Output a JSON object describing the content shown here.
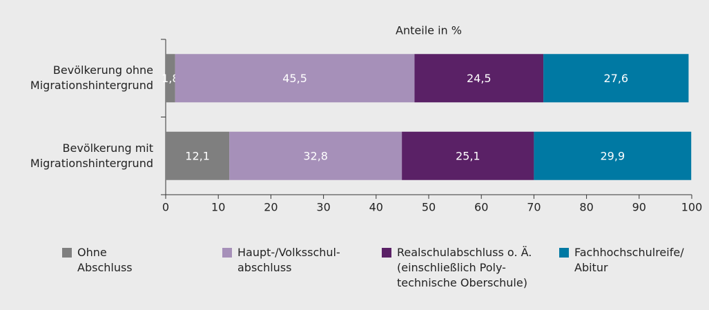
{
  "chart_data": {
    "type": "stacked-barh",
    "title": "Anteile in %",
    "categories": [
      "Bevölkerung ohne\nMigrationshintergrund",
      "Bevölkerung mit\nMigrationshintergrund"
    ],
    "series": [
      {
        "name": "Ohne\nAbschluss",
        "color": "#7f7f7f",
        "values": [
          1.8,
          12.1
        ],
        "value_labels": [
          "1,8",
          "12,1"
        ]
      },
      {
        "name": "Haupt-/Volksschul-\nabschluss",
        "color": "#a690b9",
        "values": [
          45.5,
          32.8
        ],
        "value_labels": [
          "45,5",
          "32,8"
        ]
      },
      {
        "name": "Realschulabschluss o. Ä.\n(einschließlich Poly-\ntechnische Oberschule)",
        "color": "#5a2166",
        "values": [
          24.5,
          25.1
        ],
        "value_labels": [
          "24,5",
          "25,1"
        ]
      },
      {
        "name": "Fachhochschulreife/\nAbitur",
        "color": "#0079a3",
        "values": [
          27.6,
          29.9
        ],
        "value_labels": [
          "27,6",
          "29,9"
        ]
      }
    ],
    "xlim": [
      0,
      100
    ],
    "xticks": [
      0,
      10,
      20,
      30,
      40,
      50,
      60,
      70,
      80,
      90,
      100
    ],
    "legend": "bottom"
  }
}
